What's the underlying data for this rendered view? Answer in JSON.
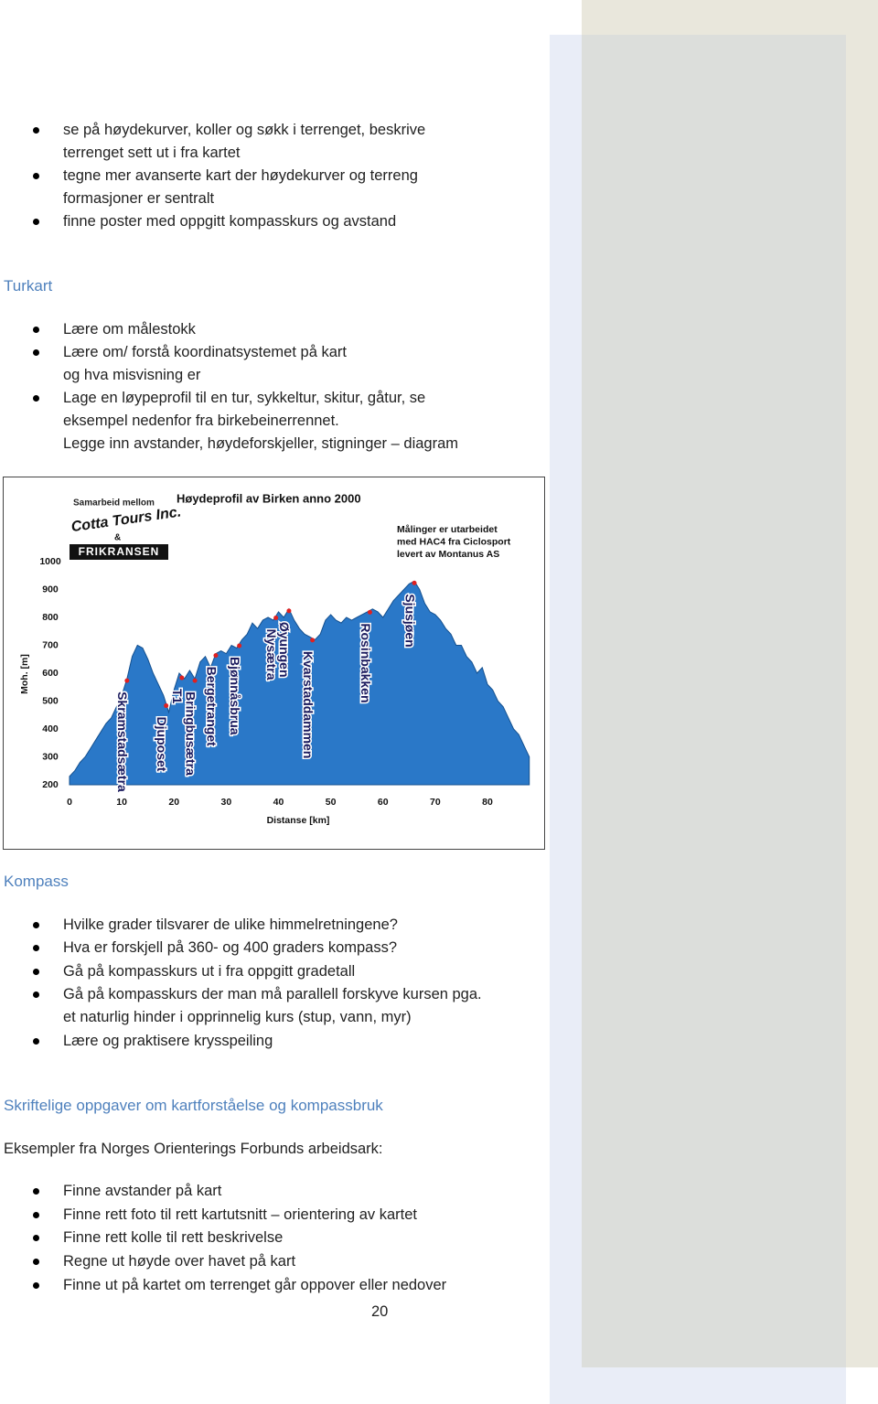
{
  "intro_list": [
    [
      "se på høydekurver, koller og søkk i terrenget, beskrive",
      "terrenget sett ut i fra kartet"
    ],
    [
      "tegne mer avanserte kart der høydekurver og terreng",
      "formasjoner er sentralt"
    ],
    [
      "finne poster med oppgitt kompasskurs og avstand"
    ]
  ],
  "turkart": {
    "heading": "Turkart",
    "list": [
      [
        "Lære om målestokk"
      ],
      [
        "Lære om/ forstå koordinatsystemet på kart",
        "og hva misvisning er"
      ],
      [
        "Lage en løypeprofil til en tur, sykkeltur, skitur, gåtur, se",
        "eksempel nedenfor fra birkebeinerrennet.",
        "Legge inn avstander, høydeforskjeller, stigninger – diagram"
      ]
    ]
  },
  "chart_data": {
    "type": "area",
    "title": "Høydeprofil av Birken anno 2000",
    "credit_lines": [
      "Samarbeid mellom",
      "Cotta Tours Inc.",
      "&",
      "FRIKRANSEN"
    ],
    "note_lines": [
      "Målinger er utarbeidet",
      "med HAC4 fra Ciclosport",
      "levert av Montanus AS"
    ],
    "xlabel": "Distanse [km]",
    "ylabel": "Moh. [m]",
    "color": "#2a78c8",
    "x": [
      0,
      1,
      2,
      3,
      4,
      5,
      6,
      7,
      8,
      9,
      10,
      11,
      12,
      13,
      14,
      15,
      16,
      17,
      18,
      19,
      20,
      21,
      22,
      23,
      24,
      25,
      26,
      27,
      28,
      29,
      30,
      31,
      32,
      33,
      34,
      35,
      36,
      37,
      38,
      39,
      40,
      41,
      42,
      43,
      44,
      45,
      46,
      47,
      48,
      49,
      50,
      51,
      52,
      53,
      54,
      55,
      56,
      57,
      58,
      59,
      60,
      61,
      62,
      63,
      64,
      65,
      66,
      67,
      68,
      69,
      70,
      71,
      72,
      73,
      74,
      75,
      76,
      77,
      78,
      79,
      80,
      81,
      82,
      83,
      84,
      85,
      86,
      87,
      88
    ],
    "values": [
      230,
      250,
      280,
      300,
      330,
      360,
      390,
      420,
      440,
      480,
      520,
      580,
      660,
      700,
      690,
      650,
      600,
      560,
      520,
      460,
      540,
      600,
      580,
      610,
      580,
      640,
      660,
      620,
      670,
      680,
      670,
      700,
      690,
      720,
      740,
      780,
      760,
      790,
      800,
      790,
      820,
      800,
      830,
      790,
      760,
      740,
      730,
      720,
      740,
      790,
      810,
      790,
      780,
      800,
      790,
      800,
      810,
      820,
      830,
      820,
      800,
      830,
      860,
      880,
      900,
      920,
      930,
      900,
      850,
      820,
      810,
      790,
      760,
      740,
      700,
      700,
      660,
      640,
      600,
      620,
      560,
      540,
      500,
      480,
      440,
      400,
      380,
      340,
      300
    ],
    "xlim": [
      0,
      88
    ],
    "ylim": [
      200,
      1000
    ],
    "xticks": [
      0,
      10,
      20,
      30,
      40,
      50,
      60,
      70,
      80
    ],
    "yticks": [
      200,
      300,
      400,
      500,
      600,
      700,
      800,
      900,
      1000
    ],
    "annotations": [
      {
        "label": "Skramstadsætra",
        "x": 11
      },
      {
        "label": "Djuposet",
        "x": 18.5
      },
      {
        "label": "T1",
        "x": 21.5
      },
      {
        "label": "Bringbusætra",
        "x": 24
      },
      {
        "label": "Bergetranget",
        "x": 28
      },
      {
        "label": "Bjønnåsbrua",
        "x": 32.5
      },
      {
        "label": "Nysætra",
        "x": 39.5
      },
      {
        "label": "Øyungen",
        "x": 42
      },
      {
        "label": "Kvarstaddammen",
        "x": 46.5
      },
      {
        "label": "Rosinbakken",
        "x": 57.5
      },
      {
        "label": "Sjusjøen",
        "x": 66
      }
    ]
  },
  "kompass": {
    "heading": "Kompass",
    "list": [
      [
        "Hvilke grader tilsvarer de ulike himmelretningene?"
      ],
      [
        "Hva er forskjell på 360- og 400 graders kompass?"
      ],
      [
        "Gå på kompasskurs ut i fra oppgitt gradetall"
      ],
      [
        "Gå på kompasskurs der man må parallell forskyve kursen pga.",
        "et naturlig hinder i opprinnelig kurs (stup, vann, myr)"
      ],
      [
        "Lære og praktisere krysspeiling"
      ]
    ]
  },
  "oppgaver": {
    "heading": "Skriftelige oppgaver om kartforståelse og kompassbruk",
    "paragraph": "Eksempler fra Norges Orienterings Forbunds arbeidsark:",
    "list": [
      [
        "Finne avstander på kart"
      ],
      [
        "Finne rett foto til rett kartutsnitt – orientering av kartet"
      ],
      [
        "Finne rett kolle til rett beskrivelse"
      ],
      [
        "Regne ut høyde over havet på kart"
      ],
      [
        "Finne ut på kartet om terrenget går oppover eller nedover"
      ]
    ]
  },
  "page_number": "20"
}
